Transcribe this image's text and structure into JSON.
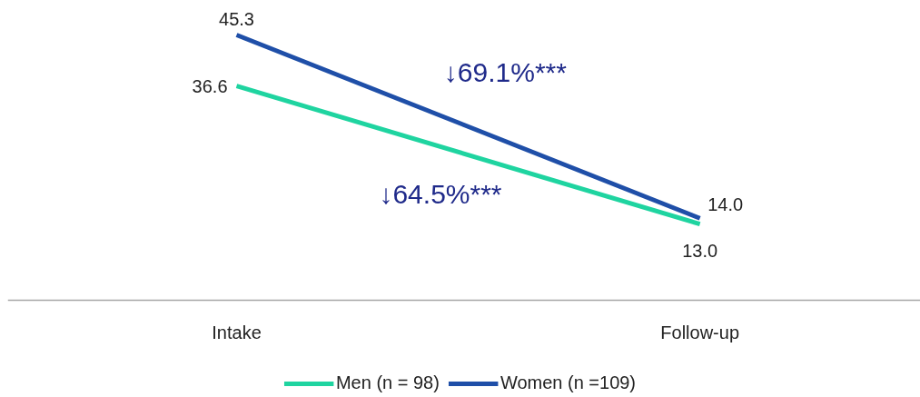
{
  "chart_data": {
    "type": "line",
    "categories": [
      "Intake",
      "Follow-up"
    ],
    "series": [
      {
        "name": "Men (n = 98)",
        "color": "#1fd4a0",
        "values": [
          36.6,
          13.0
        ],
        "value_labels": [
          "36.6",
          "13.0"
        ]
      },
      {
        "name": "Women (n =109)",
        "color": "#1f4fa8",
        "values": [
          45.3,
          14.0
        ],
        "value_labels": [
          "45.3",
          "14.0"
        ]
      }
    ],
    "annotations": [
      "↓69.1%***",
      "↓64.5%***"
    ],
    "tick_labels": "x",
    "grid": false,
    "legend": "bottom",
    "marker": "none",
    "line_style": "solid"
  }
}
